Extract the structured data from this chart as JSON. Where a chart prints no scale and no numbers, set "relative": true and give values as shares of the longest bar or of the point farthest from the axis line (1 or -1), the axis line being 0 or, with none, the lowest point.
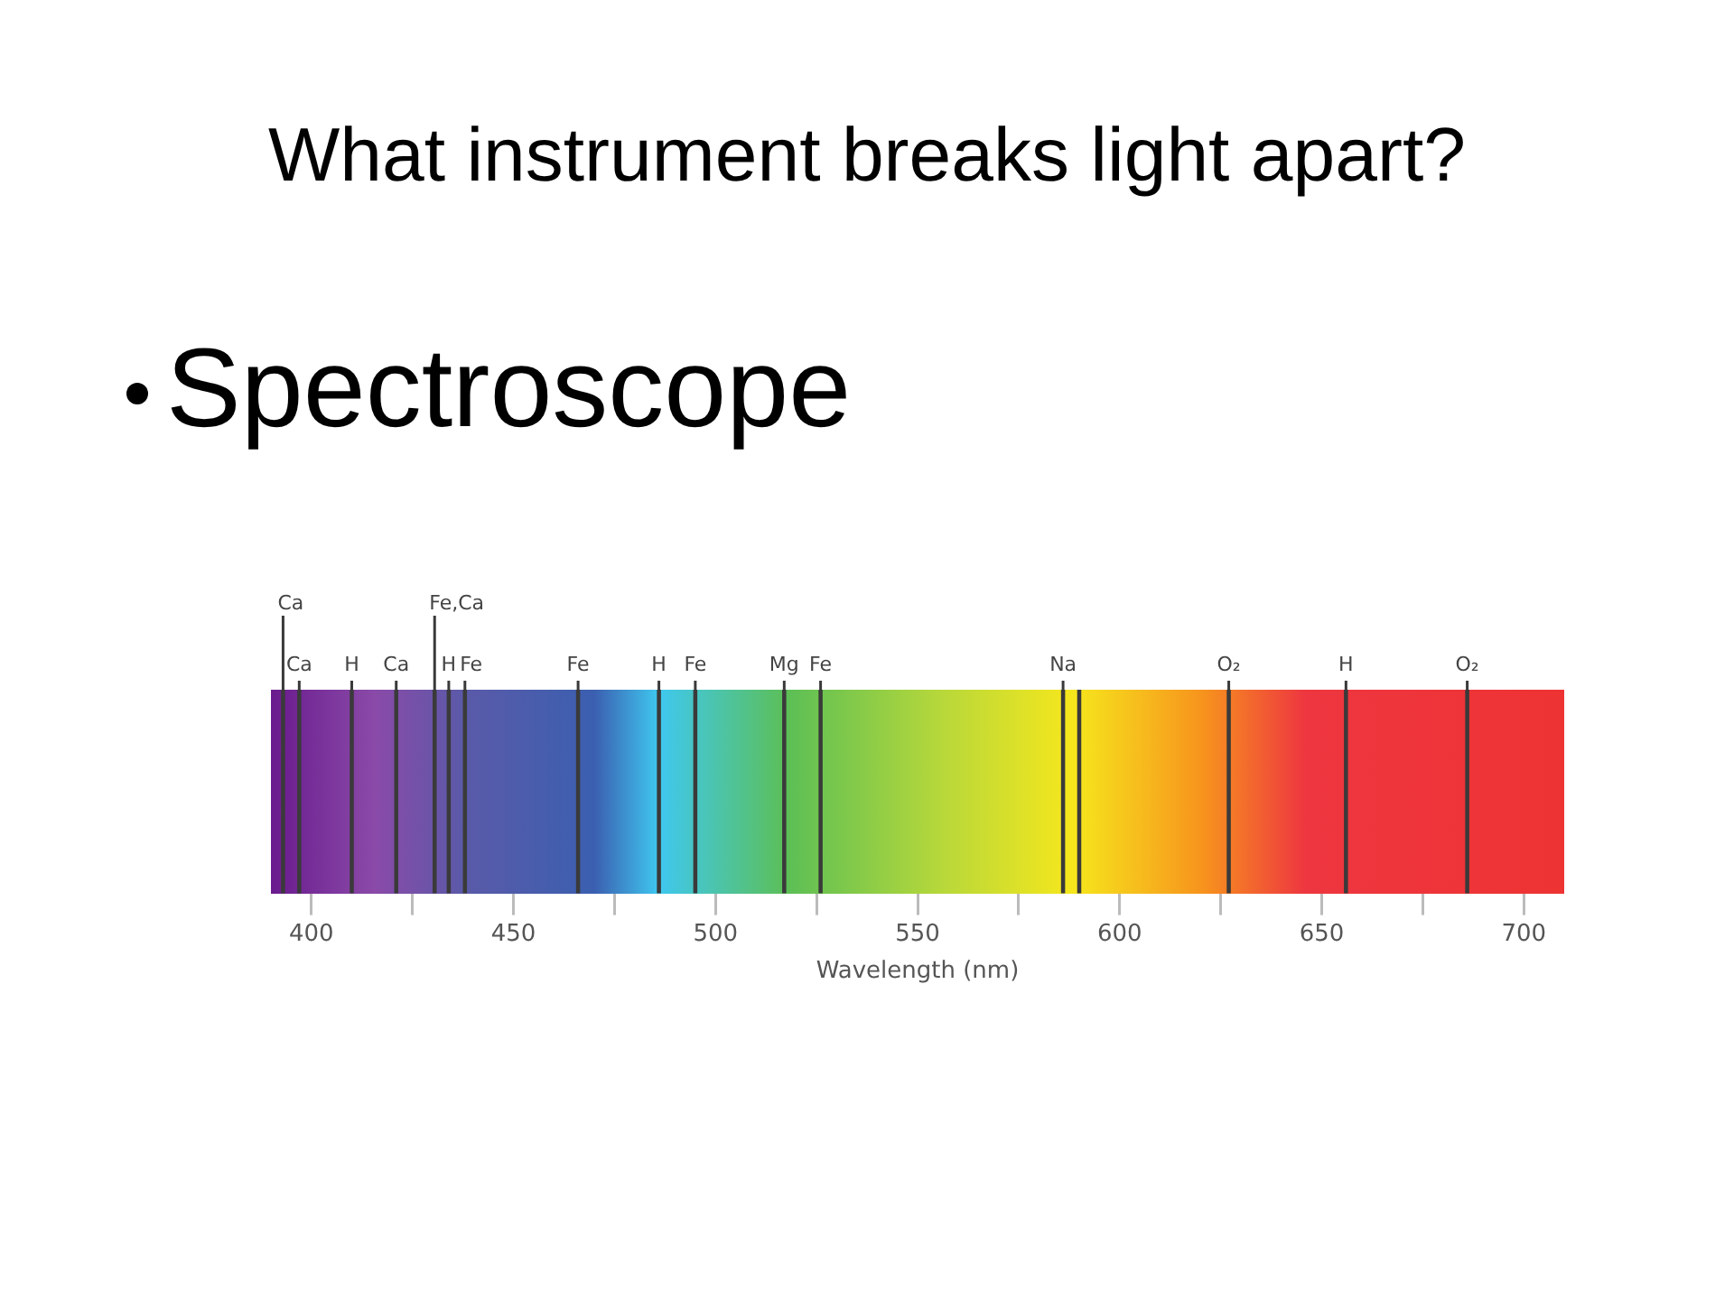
{
  "chart_data": {
    "type": "bar",
    "relative": true,
    "title": "What instrument breaks light apart?",
    "subtitle": "Spectroscope",
    "xlabel": "Wavelength (nm)",
    "xlim": [
      390,
      710
    ],
    "xticks": [
      400,
      {
        "value": 425,
        "label": null
      },
      450,
      {
        "value": 475,
        "label": null
      },
      500,
      {
        "value": 525,
        "label": null
      },
      550,
      {
        "value": 575,
        "label": null
      },
      600,
      {
        "value": 625,
        "label": null
      },
      650,
      {
        "value": 675,
        "label": null
      },
      700
    ],
    "x": [
      393,
      397,
      410,
      421,
      430.5,
      434,
      438,
      466,
      486,
      495,
      517,
      526,
      586,
      590,
      627,
      656,
      686
    ],
    "values": [
      1,
      1,
      1,
      1,
      1,
      1,
      1,
      1,
      1,
      1,
      1,
      1,
      1,
      1,
      1,
      1,
      1
    ],
    "color": "#3a3a3a",
    "annotations": [
      {
        "text": "Ca",
        "x": 393,
        "y": 1
      },
      {
        "text": "Ca",
        "x": 397,
        "y": 1
      },
      {
        "text": "H",
        "x": 410,
        "y": 1
      },
      {
        "text": "Ca",
        "x": 421,
        "y": 1
      },
      {
        "text": "Fe,Ca",
        "x": 430.5,
        "y": 1
      },
      {
        "text": "H",
        "x": 434,
        "y": 1
      },
      {
        "text": "Fe",
        "x": 438,
        "y": 1
      },
      {
        "text": "Fe",
        "x": 466,
        "y": 1
      },
      {
        "text": "H",
        "x": 486,
        "y": 1
      },
      {
        "text": "Fe",
        "x": 495,
        "y": 1
      },
      {
        "text": "Mg",
        "x": 517,
        "y": 1
      },
      {
        "text": "Fe",
        "x": 526,
        "y": 1
      },
      {
        "text": "Na",
        "x": 586,
        "y": 1
      },
      {
        "text": "O₂",
        "x": 627,
        "y": 1
      },
      {
        "text": "H",
        "x": 656,
        "y": 1
      },
      {
        "text": "O₂",
        "x": 686,
        "y": 1
      }
    ]
  }
}
